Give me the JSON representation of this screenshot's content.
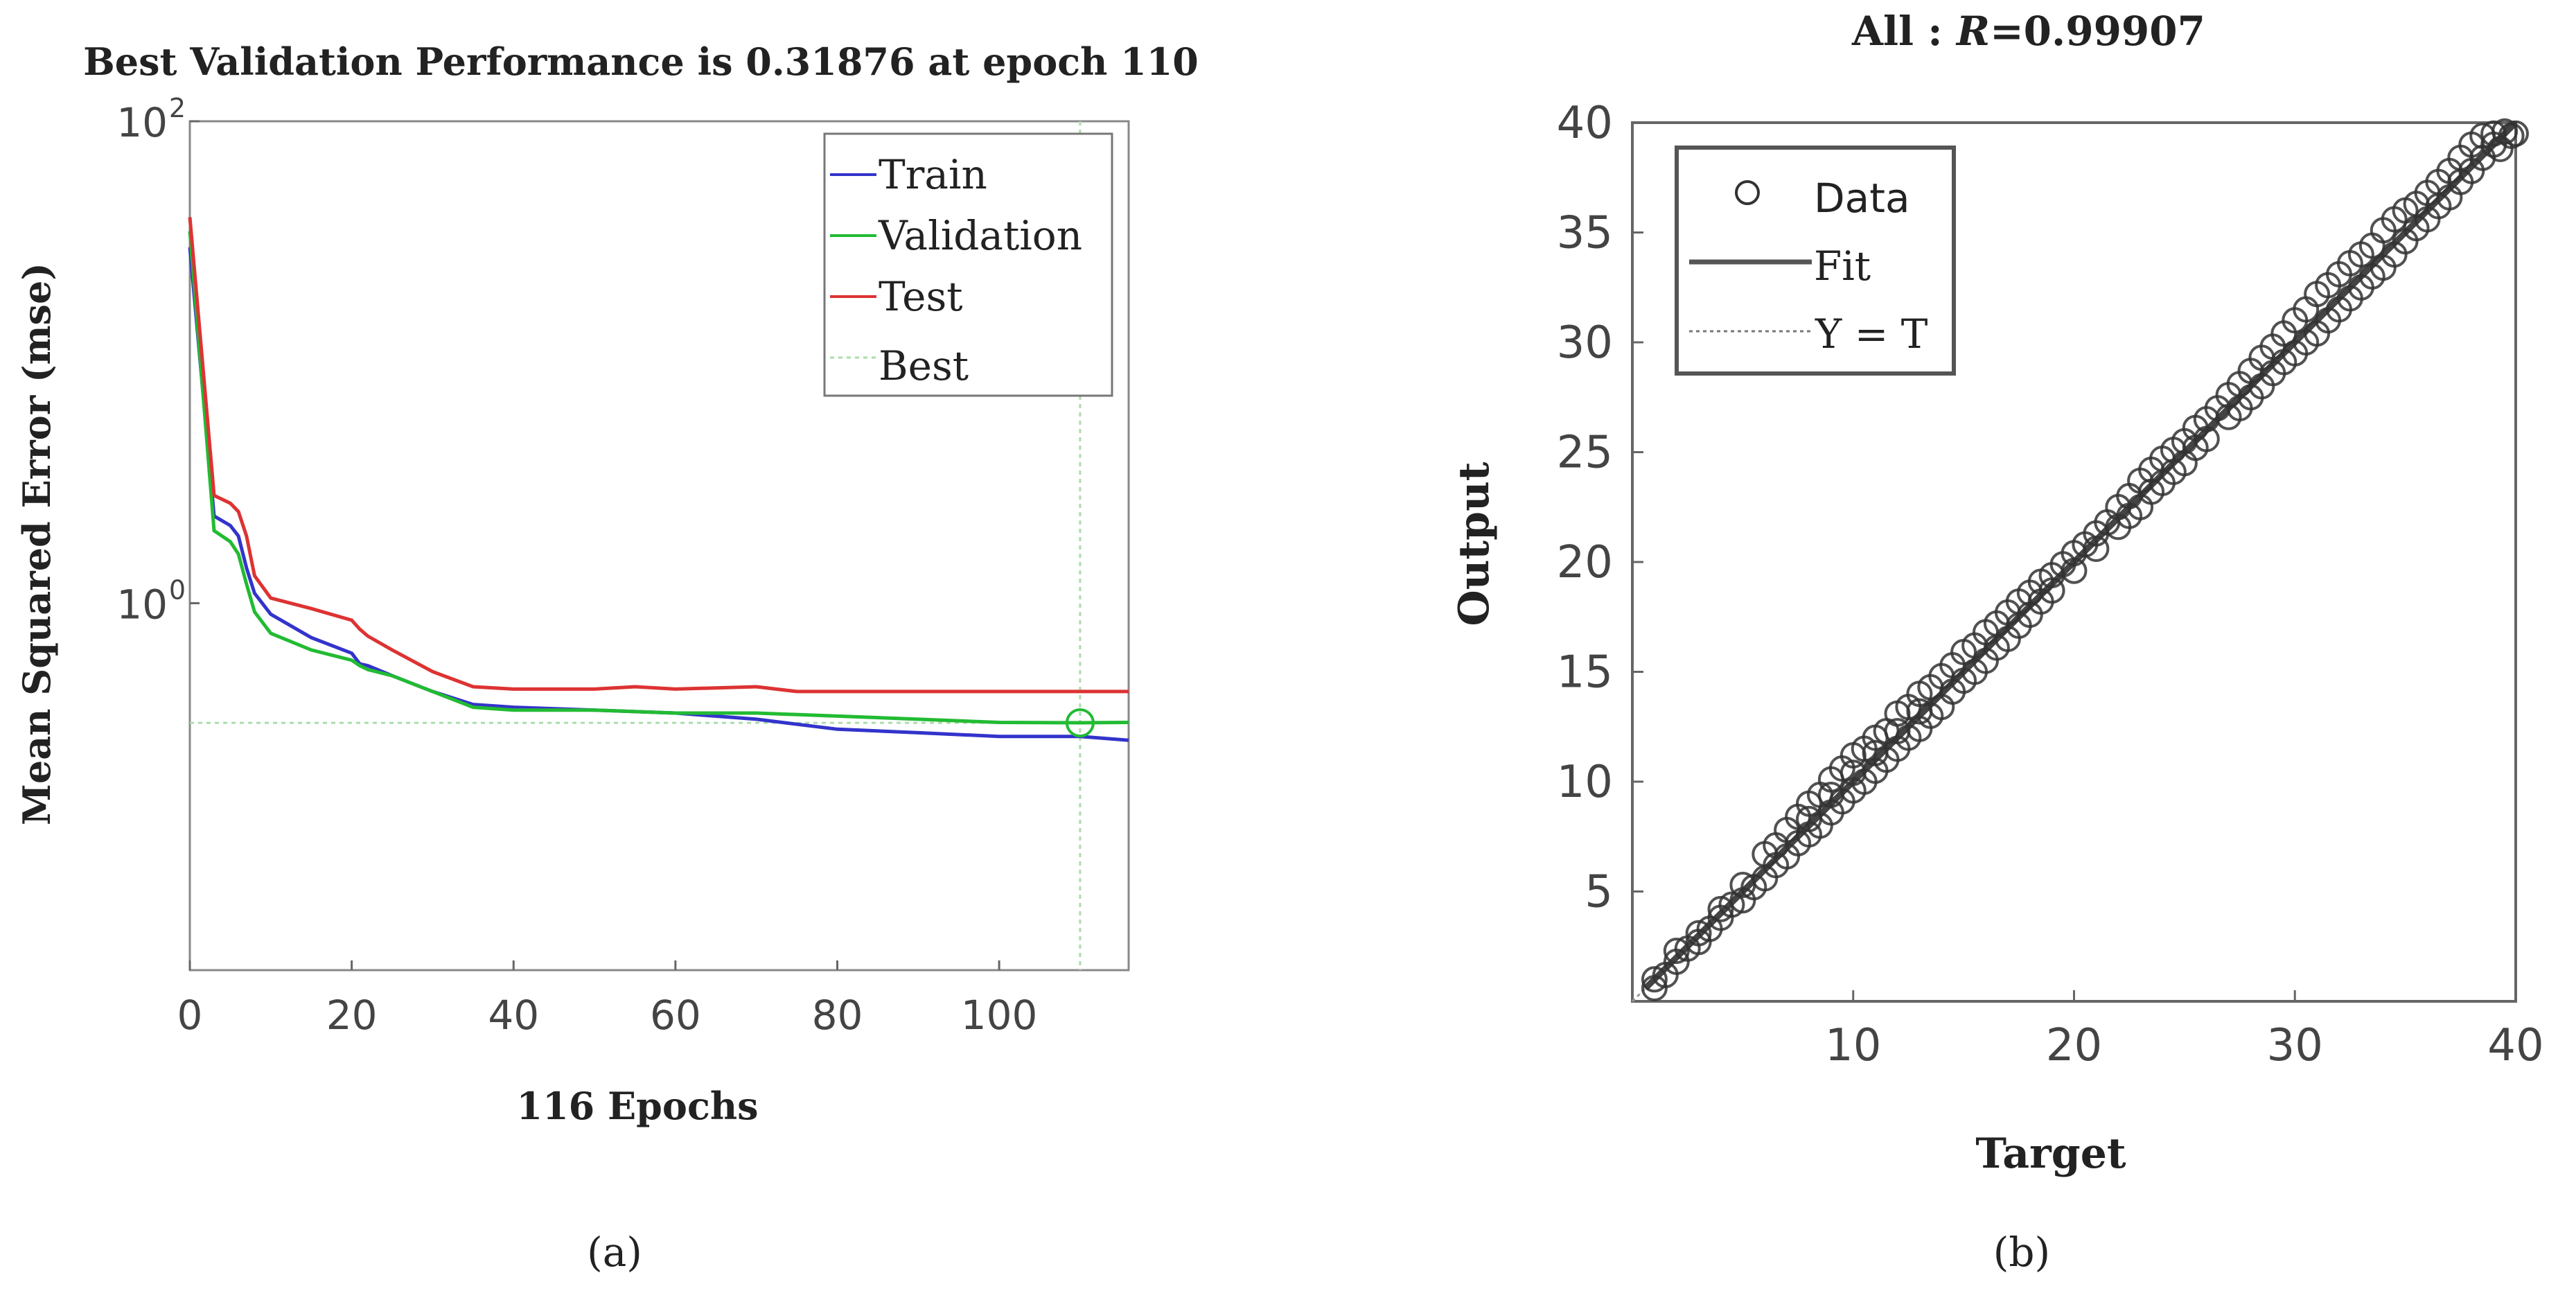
{
  "chart_data": [
    {
      "type": "line",
      "panel_label": "(a)",
      "title": "Best Validation Performance is 0.31876 at epoch 110",
      "xlabel": "116 Epochs",
      "ylabel": "Mean Squared Error  (mse)",
      "yscale": "log",
      "xlim": [
        0,
        116
      ],
      "ylim": [
        0.03,
        100
      ],
      "x_ticks": [
        0,
        20,
        40,
        60,
        80,
        100
      ],
      "x_tick_labels": [
        "0",
        "20",
        "40",
        "60",
        "80",
        "100"
      ],
      "y_ticks": [
        1,
        100
      ],
      "y_tick_labels": [
        {
          "base": "10",
          "exp": "0"
        },
        {
          "base": "10",
          "exp": "2"
        }
      ],
      "legend_position": "top-right",
      "best": {
        "epoch": 110,
        "value": 0.31876,
        "label": "Best"
      },
      "series": [
        {
          "name": "Train",
          "color": "#3333cc",
          "x": [
            0,
            3,
            5,
            6,
            7,
            8,
            10,
            15,
            20,
            21,
            22,
            25,
            30,
            35,
            40,
            50,
            60,
            70,
            80,
            90,
            100,
            110,
            116
          ],
          "y": [
            30,
            2.3,
            2.1,
            1.9,
            1.4,
            1.1,
            0.9,
            0.72,
            0.62,
            0.56,
            0.55,
            0.5,
            0.43,
            0.38,
            0.37,
            0.36,
            0.35,
            0.33,
            0.3,
            0.29,
            0.28,
            0.28,
            0.27
          ]
        },
        {
          "name": "Validation",
          "color": "#22bb33",
          "x": [
            0,
            3,
            5,
            6,
            7,
            8,
            10,
            15,
            20,
            21,
            22,
            25,
            30,
            35,
            40,
            50,
            60,
            70,
            80,
            90,
            100,
            110,
            116
          ],
          "y": [
            35,
            2.0,
            1.8,
            1.6,
            1.2,
            0.92,
            0.75,
            0.64,
            0.58,
            0.55,
            0.53,
            0.5,
            0.43,
            0.37,
            0.36,
            0.36,
            0.35,
            0.35,
            0.34,
            0.33,
            0.32,
            0.319,
            0.32
          ]
        },
        {
          "name": "Test",
          "color": "#dd3333",
          "x": [
            0,
            3,
            5,
            6,
            7,
            8,
            10,
            15,
            20,
            21,
            22,
            25,
            30,
            35,
            40,
            50,
            55,
            60,
            70,
            75,
            80,
            90,
            100,
            110,
            116
          ],
          "y": [
            40,
            2.8,
            2.6,
            2.4,
            1.9,
            1.3,
            1.05,
            0.95,
            0.85,
            0.78,
            0.73,
            0.64,
            0.52,
            0.45,
            0.44,
            0.44,
            0.45,
            0.44,
            0.45,
            0.43,
            0.43,
            0.43,
            0.43,
            0.43,
            0.43
          ]
        }
      ]
    },
    {
      "type": "scatter",
      "panel_label": "(b)",
      "title_prefix": "All : ",
      "title_r": "R",
      "title_value": "=0.99907",
      "xlabel": "Target",
      "ylabel": "Output",
      "xlim": [
        0,
        40
      ],
      "ylim": [
        0,
        40
      ],
      "x_ticks": [
        10,
        20,
        30,
        40
      ],
      "y_ticks": [
        5,
        10,
        15,
        20,
        25,
        30,
        35,
        40
      ],
      "legend_position": "top-left",
      "legend": [
        "Data",
        "Fit",
        "Y = T"
      ],
      "fit": {
        "slope": 1.0,
        "intercept": 0.0
      },
      "data_points": [
        [
          1,
          1
        ],
        [
          1,
          0.6
        ],
        [
          1.5,
          1.2
        ],
        [
          2,
          1.8
        ],
        [
          2,
          2.3
        ],
        [
          2.5,
          2.4
        ],
        [
          3,
          3.1
        ],
        [
          3,
          2.7
        ],
        [
          3.5,
          3.3
        ],
        [
          4,
          4.2
        ],
        [
          4,
          3.8
        ],
        [
          4.5,
          4.4
        ],
        [
          5,
          5.3
        ],
        [
          5,
          4.6
        ],
        [
          5.5,
          5.2
        ],
        [
          6,
          6.7
        ],
        [
          6,
          5.6
        ],
        [
          6.5,
          7.1
        ],
        [
          6.5,
          6.2
        ],
        [
          7,
          7.8
        ],
        [
          7,
          6.6
        ],
        [
          7.5,
          8.4
        ],
        [
          7.5,
          7.2
        ],
        [
          8,
          9.0
        ],
        [
          8,
          7.6
        ],
        [
          8,
          8.3
        ],
        [
          8.5,
          9.4
        ],
        [
          8.5,
          8.0
        ],
        [
          9,
          10.1
        ],
        [
          9,
          8.6
        ],
        [
          9,
          9.4
        ],
        [
          9.5,
          10.6
        ],
        [
          9.5,
          9.1
        ],
        [
          10,
          11.2
        ],
        [
          10,
          9.6
        ],
        [
          10,
          10.4
        ],
        [
          10.5,
          11.5
        ],
        [
          10.5,
          10.0
        ],
        [
          11,
          12.0
        ],
        [
          11,
          10.5
        ],
        [
          11,
          11.3
        ],
        [
          11.5,
          12.3
        ],
        [
          11.5,
          11.0
        ],
        [
          12,
          13.1
        ],
        [
          12,
          11.5
        ],
        [
          12,
          12.3
        ],
        [
          12.5,
          13.4
        ],
        [
          12.5,
          12.0
        ],
        [
          13,
          14.0
        ],
        [
          13,
          12.4
        ],
        [
          13,
          13.2
        ],
        [
          13.5,
          14.3
        ],
        [
          13.5,
          13.0
        ],
        [
          14,
          14.8
        ],
        [
          14,
          13.4
        ],
        [
          14.5,
          15.3
        ],
        [
          14.5,
          14.1
        ],
        [
          15,
          15.9
        ],
        [
          15,
          14.6
        ],
        [
          15.5,
          16.2
        ],
        [
          15.5,
          15.0
        ],
        [
          16,
          16.8
        ],
        [
          16,
          15.5
        ],
        [
          16.5,
          17.2
        ],
        [
          16.5,
          16.1
        ],
        [
          17,
          17.7
        ],
        [
          17,
          16.5
        ],
        [
          17.5,
          18.2
        ],
        [
          17.5,
          17.1
        ],
        [
          18,
          18.6
        ],
        [
          18,
          17.6
        ],
        [
          18.5,
          19.1
        ],
        [
          18.5,
          18.2
        ],
        [
          19,
          19.4
        ],
        [
          19,
          18.7
        ],
        [
          19.5,
          19.9
        ],
        [
          20,
          20.4
        ],
        [
          20,
          19.6
        ],
        [
          20.5,
          20.8
        ],
        [
          21,
          21.3
        ],
        [
          21,
          20.6
        ],
        [
          21.5,
          21.8
        ],
        [
          22,
          22.5
        ],
        [
          22,
          21.6
        ],
        [
          22.5,
          23.0
        ],
        [
          22.5,
          22.1
        ],
        [
          23,
          23.7
        ],
        [
          23,
          22.5
        ],
        [
          23.5,
          24.2
        ],
        [
          23.5,
          23.2
        ],
        [
          24,
          24.7
        ],
        [
          24,
          23.6
        ],
        [
          24.5,
          25.1
        ],
        [
          24.5,
          24.1
        ],
        [
          25,
          25.5
        ],
        [
          25,
          24.5
        ],
        [
          25.5,
          26.1
        ],
        [
          25.5,
          25.2
        ],
        [
          26,
          26.5
        ],
        [
          26,
          25.6
        ],
        [
          26.5,
          27.0
        ],
        [
          27,
          27.6
        ],
        [
          27,
          26.6
        ],
        [
          27.5,
          28.1
        ],
        [
          27.5,
          27.0
        ],
        [
          28,
          28.7
        ],
        [
          28,
          27.5
        ],
        [
          28.5,
          29.3
        ],
        [
          28.5,
          28.0
        ],
        [
          29,
          29.8
        ],
        [
          29,
          28.6
        ],
        [
          29.5,
          30.4
        ],
        [
          29.5,
          29.1
        ],
        [
          30,
          31.0
        ],
        [
          30,
          29.5
        ],
        [
          30.5,
          31.5
        ],
        [
          30.5,
          30.0
        ],
        [
          31,
          32.2
        ],
        [
          31,
          30.4
        ],
        [
          31.5,
          32.6
        ],
        [
          31.5,
          31.0
        ],
        [
          32,
          33.1
        ],
        [
          32,
          31.5
        ],
        [
          32.5,
          33.6
        ],
        [
          32.5,
          32.0
        ],
        [
          33,
          34.0
        ],
        [
          33,
          32.5
        ],
        [
          33.5,
          34.4
        ],
        [
          33.5,
          33.0
        ],
        [
          34,
          35.1
        ],
        [
          34,
          33.4
        ],
        [
          34.5,
          35.6
        ],
        [
          34.5,
          34.0
        ],
        [
          35,
          36.0
        ],
        [
          35,
          34.6
        ],
        [
          35.5,
          36.3
        ],
        [
          35.5,
          35.2
        ],
        [
          36,
          36.8
        ],
        [
          36,
          35.6
        ],
        [
          36.5,
          37.3
        ],
        [
          36.5,
          36.2
        ],
        [
          37,
          37.8
        ],
        [
          37,
          36.6
        ],
        [
          37.5,
          38.4
        ],
        [
          37.5,
          37.3
        ],
        [
          38,
          39.0
        ],
        [
          38,
          37.8
        ],
        [
          38.5,
          39.4
        ],
        [
          38.5,
          38.4
        ],
        [
          39,
          39.5
        ],
        [
          39,
          39.0
        ],
        [
          39.5,
          39.6
        ],
        [
          39.8,
          39.4
        ],
        [
          40,
          39.5
        ],
        [
          39.3,
          38.8
        ]
      ]
    }
  ]
}
